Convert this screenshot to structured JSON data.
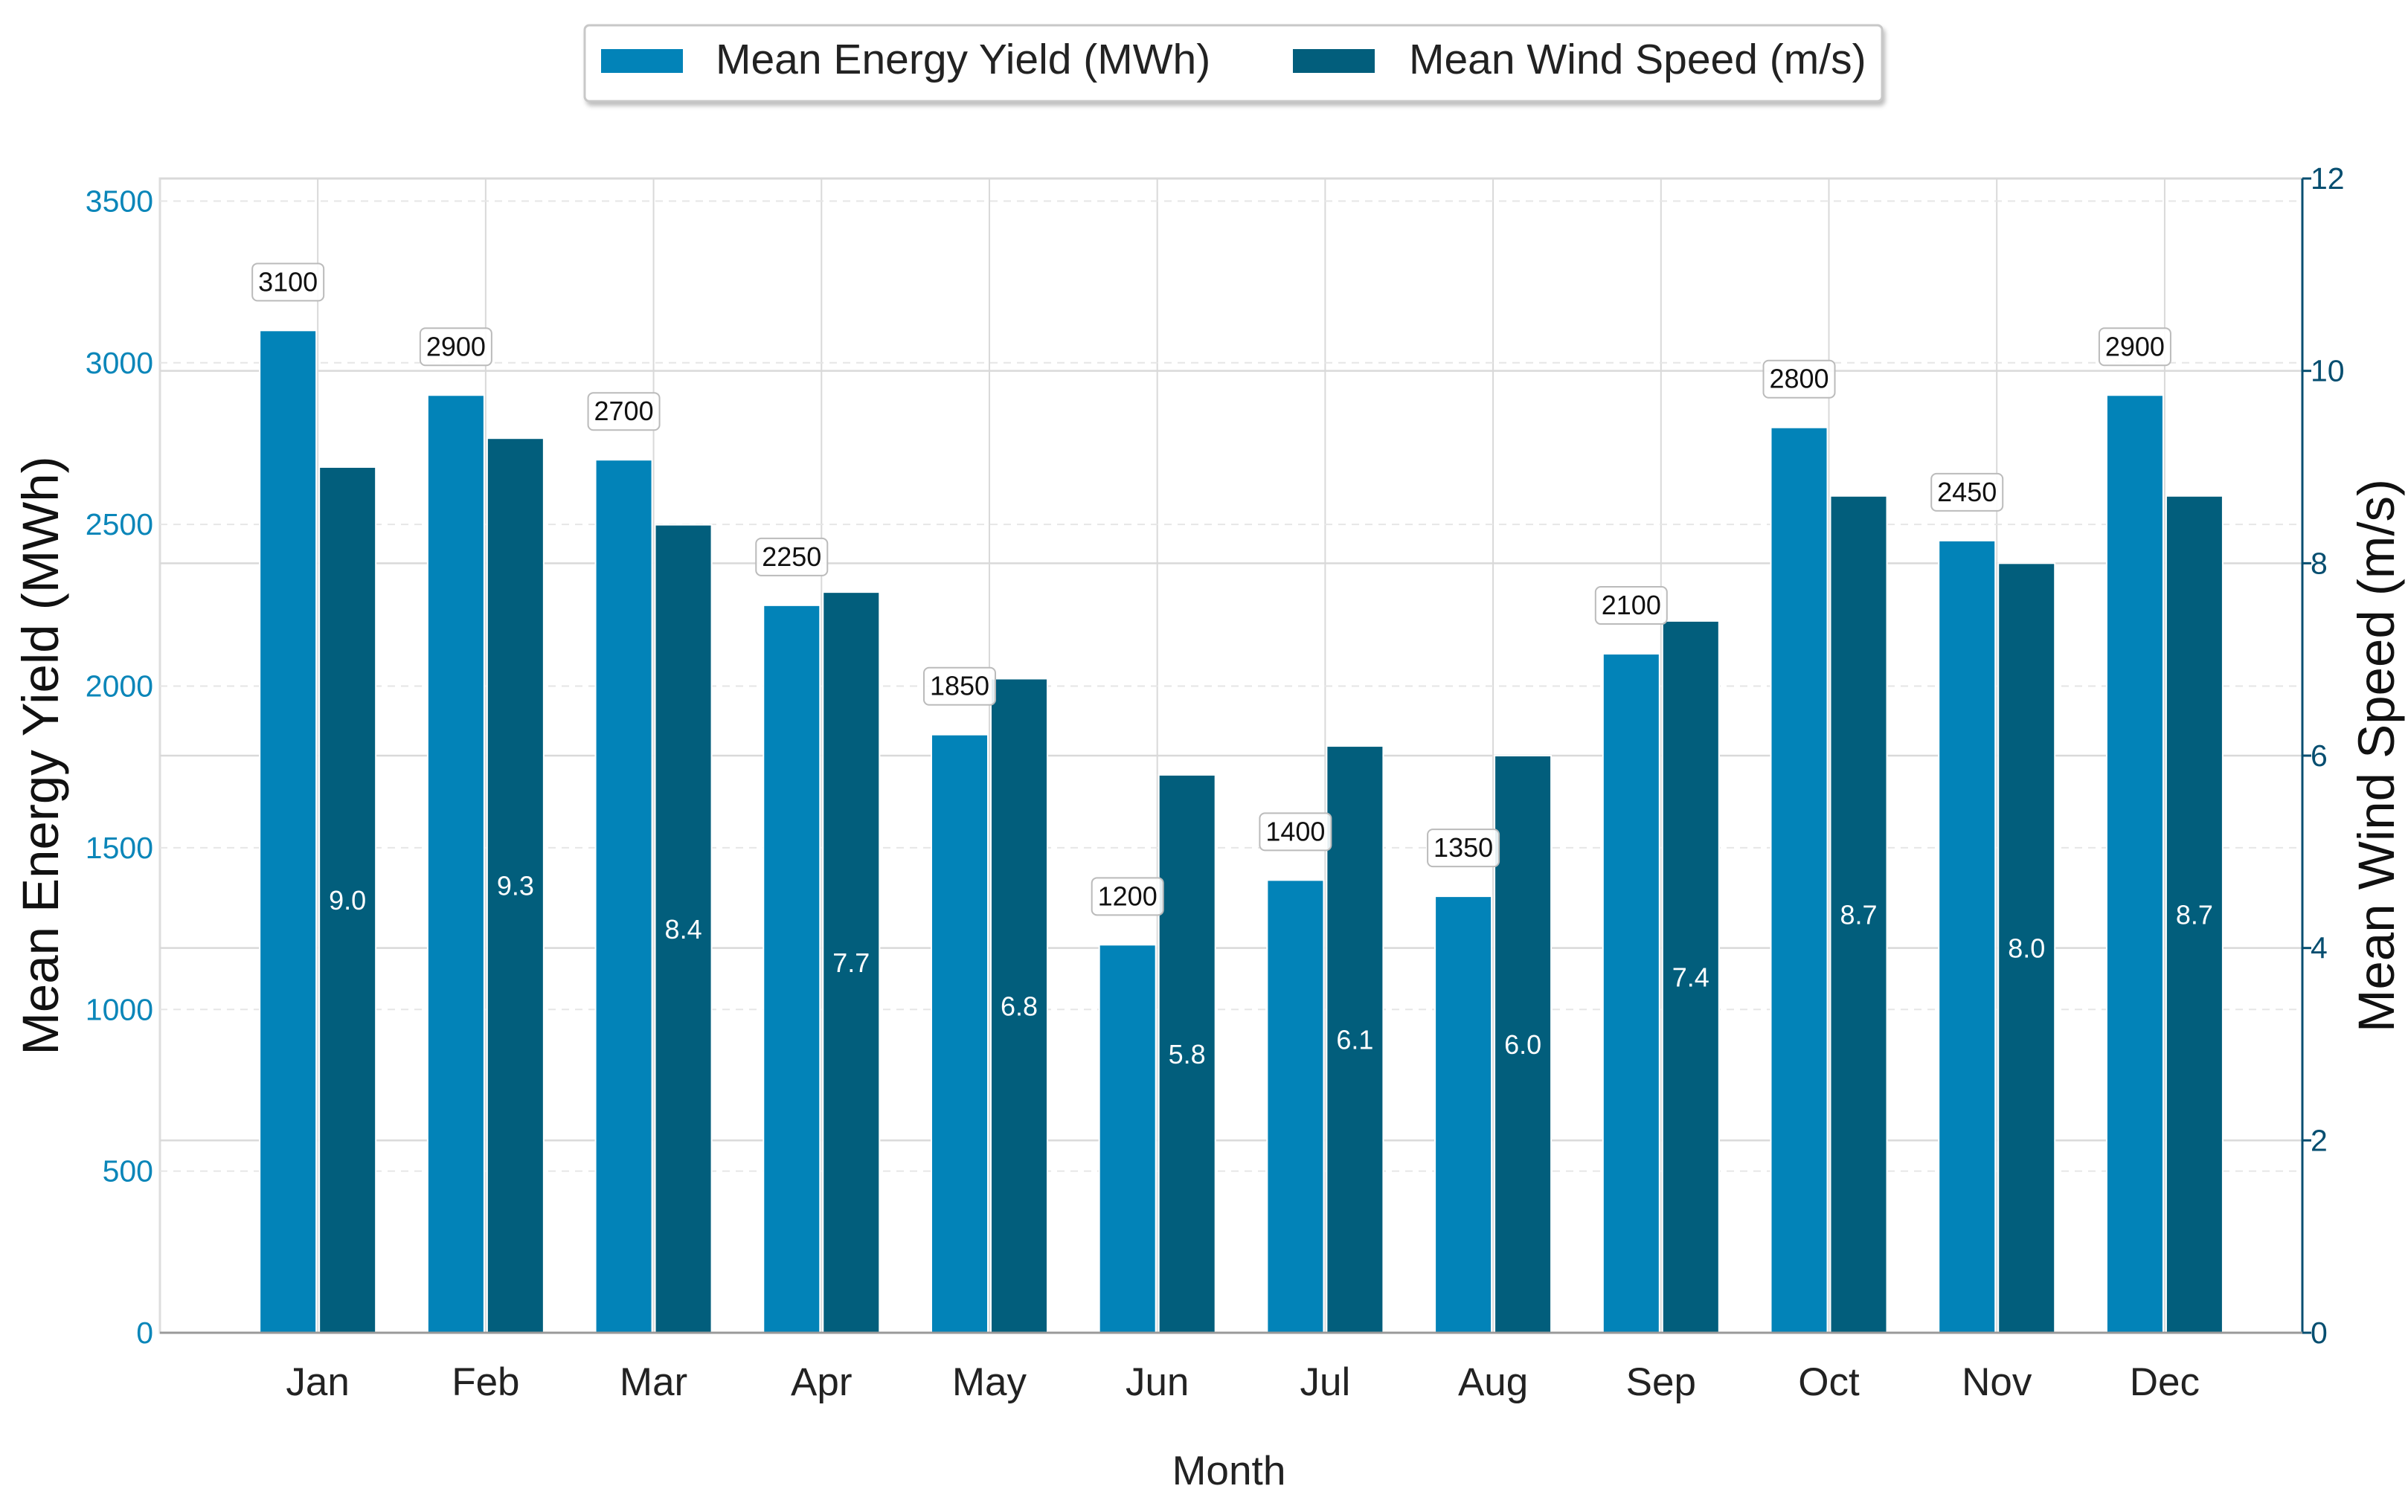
{
  "chart_data": {
    "type": "bar",
    "title": "",
    "xlabel": "Month",
    "ylabel": "Mean Energy Yield (MWh)",
    "y2label": "Mean Wind Speed (m/s)",
    "categories": [
      "Jan",
      "Feb",
      "Mar",
      "Apr",
      "May",
      "Jun",
      "Jul",
      "Aug",
      "Sep",
      "Oct",
      "Nov",
      "Dec"
    ],
    "ylim": [
      0,
      3570
    ],
    "y2lim": [
      0,
      12
    ],
    "yticks": [
      0,
      500,
      1000,
      1500,
      2000,
      2500,
      3000,
      3500
    ],
    "y2ticks": [
      0,
      2,
      4,
      6,
      8,
      10,
      12
    ],
    "grid": true,
    "legend_position": "top-center",
    "series": [
      {
        "name": "Mean Energy Yield (MWh)",
        "axis": "left",
        "color": "#0283b8",
        "values": [
          3100,
          2900,
          2700,
          2250,
          1850,
          1200,
          1400,
          1350,
          2100,
          2800,
          2450,
          2900
        ],
        "labels": [
          "3100",
          "2900",
          "2700",
          "2250",
          "1850",
          "1200",
          "1400",
          "1350",
          "2100",
          "2800",
          "2450",
          "2900"
        ]
      },
      {
        "name": "Mean Wind Speed (m/s)",
        "axis": "right",
        "color": "#025e7c",
        "values": [
          9.0,
          9.3,
          8.4,
          7.7,
          6.8,
          5.8,
          6.1,
          6.0,
          7.4,
          8.7,
          8.0,
          8.7
        ],
        "labels": [
          "9.0",
          "9.3",
          "8.4",
          "7.7",
          "6.8",
          "5.8",
          "6.1",
          "6.0",
          "7.4",
          "8.7",
          "8.0",
          "8.7"
        ]
      }
    ],
    "colors": {
      "left_axis_ticks": "#0b86b9",
      "right_axis_ticks": "#064e70",
      "grid": "#d9d9d9",
      "axis": "#999999"
    }
  }
}
